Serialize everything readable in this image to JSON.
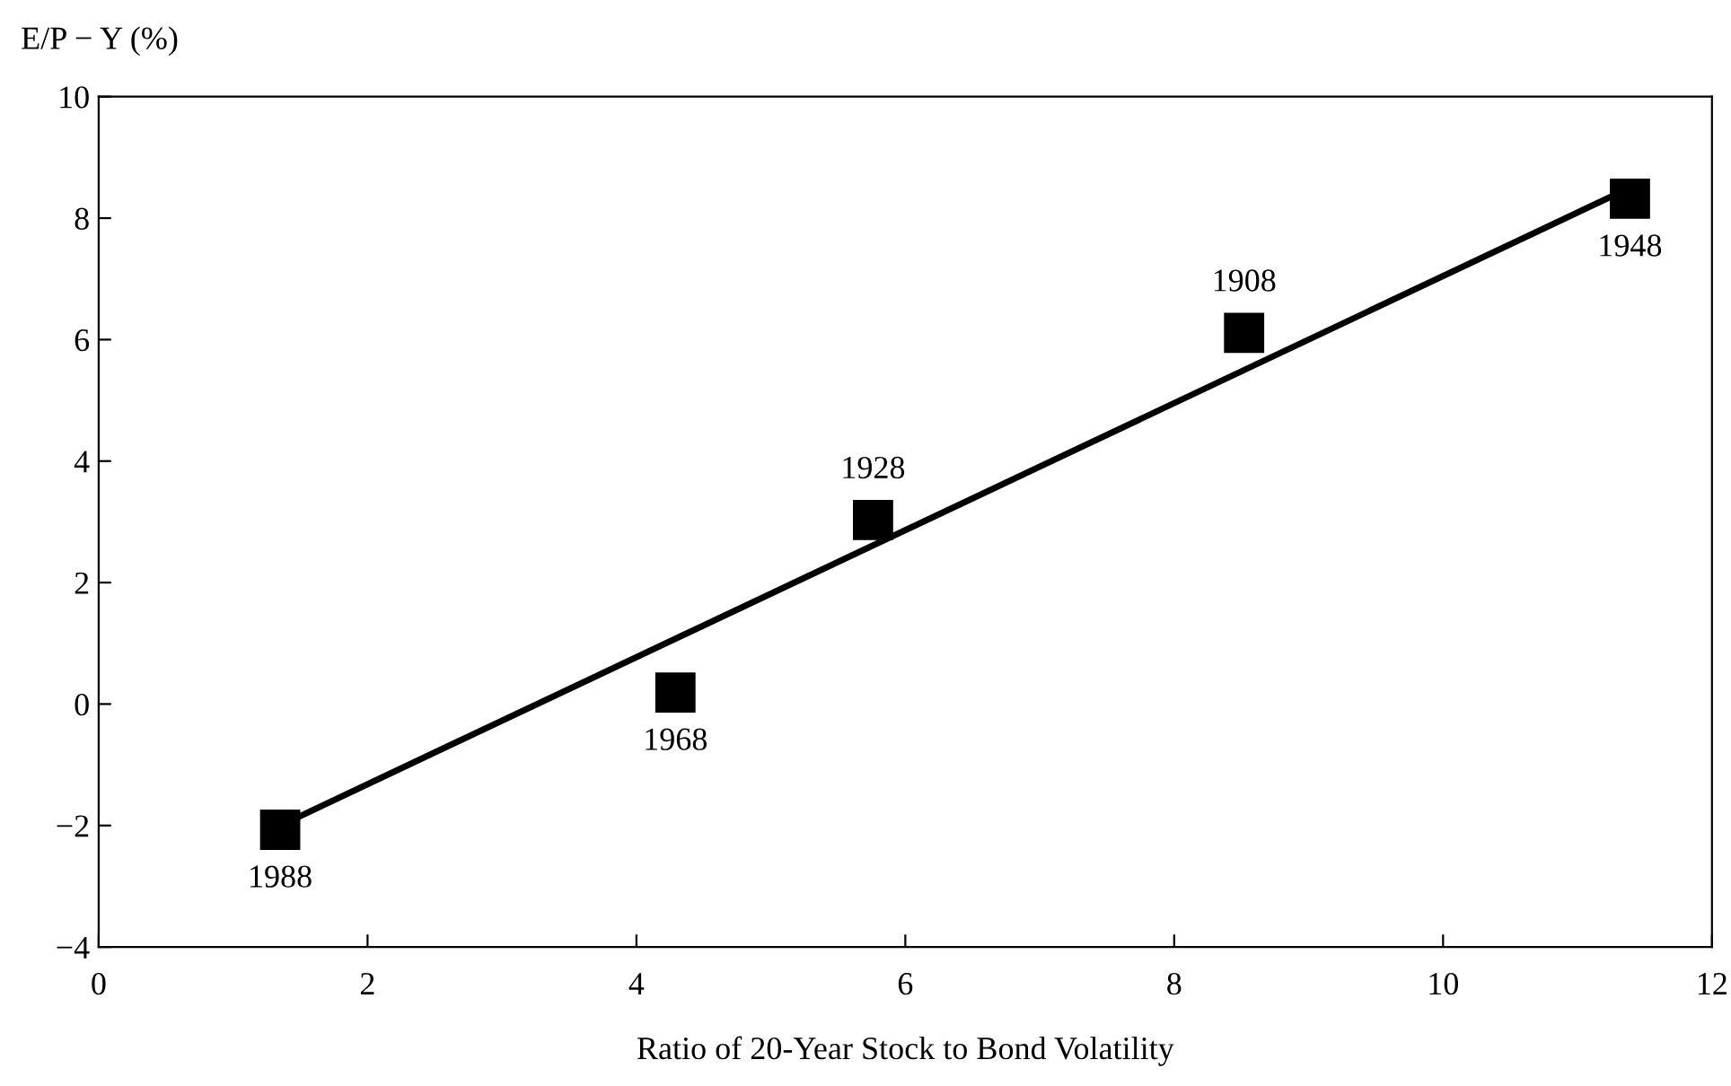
{
  "chart_data": {
    "type": "scatter",
    "ylabel": "E/P − Y (%)",
    "xlabel": "Ratio of 20-Year Stock to Bond Volatility",
    "xlim": [
      0,
      12
    ],
    "xticks": [
      0,
      2,
      4,
      6,
      8,
      10,
      12
    ],
    "ylim": [
      -4,
      10
    ],
    "yticks": [
      -4,
      -2,
      0,
      2,
      4,
      6,
      8,
      10
    ],
    "grid": false,
    "legend": false,
    "series": [
      {
        "color": "#000000",
        "marker": "square",
        "x": [
          1.35,
          4.29,
          5.76,
          8.52,
          11.39
        ],
        "values": [
          -2.07,
          0.19,
          3.03,
          6.11,
          8.32
        ]
      },
      {
        "type": "line",
        "color": "#000000",
        "marker": "none",
        "line_style": "solid",
        "x": [
          1.35,
          11.39
        ],
        "values": [
          -2.0,
          8.5
        ]
      }
    ],
    "annotations": [
      {
        "text": "1988",
        "x": 1.35,
        "y": -2.07
      },
      {
        "text": "1968",
        "x": 4.29,
        "y": 0.19
      },
      {
        "text": "1928",
        "x": 5.76,
        "y": 3.03
      },
      {
        "text": "1908",
        "x": 8.52,
        "y": 6.11
      },
      {
        "text": "1948",
        "x": 11.39,
        "y": 8.32
      }
    ]
  }
}
